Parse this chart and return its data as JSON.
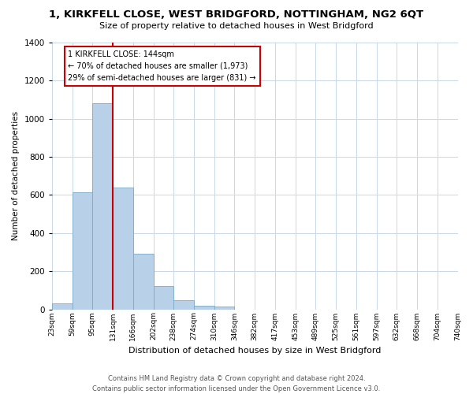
{
  "title": "1, KIRKFELL CLOSE, WEST BRIDGFORD, NOTTINGHAM, NG2 6QT",
  "subtitle": "Size of property relative to detached houses in West Bridgford",
  "xlabel": "Distribution of detached houses by size in West Bridgford",
  "ylabel": "Number of detached properties",
  "bar_values": [
    30,
    615,
    1080,
    640,
    290,
    120,
    47,
    20,
    15,
    0,
    0,
    0,
    0,
    0,
    0,
    0,
    0,
    0,
    0,
    0
  ],
  "bin_labels": [
    "23sqm",
    "59sqm",
    "95sqm",
    "131sqm",
    "166sqm",
    "202sqm",
    "238sqm",
    "274sqm",
    "310sqm",
    "346sqm",
    "382sqm",
    "417sqm",
    "453sqm",
    "489sqm",
    "525sqm",
    "561sqm",
    "597sqm",
    "632sqm",
    "668sqm",
    "704sqm",
    "740sqm"
  ],
  "bar_color": "#b8d0e8",
  "bar_edge_color": "#7aaac8",
  "vline_x_index": 3,
  "vline_color": "#cc0000",
  "ylim": [
    0,
    1400
  ],
  "yticks": [
    0,
    200,
    400,
    600,
    800,
    1000,
    1200,
    1400
  ],
  "annotation_title": "1 KIRKFELL CLOSE: 144sqm",
  "annotation_line1": "← 70% of detached houses are smaller (1,973)",
  "annotation_line2": "29% of semi-detached houses are larger (831) →",
  "annotation_box_color": "#cc0000",
  "footer_line1": "Contains HM Land Registry data © Crown copyright and database right 2024.",
  "footer_line2": "Contains public sector information licensed under the Open Government Licence v3.0.",
  "bg_color": "#ffffff",
  "grid_color": "#c8d8e8"
}
